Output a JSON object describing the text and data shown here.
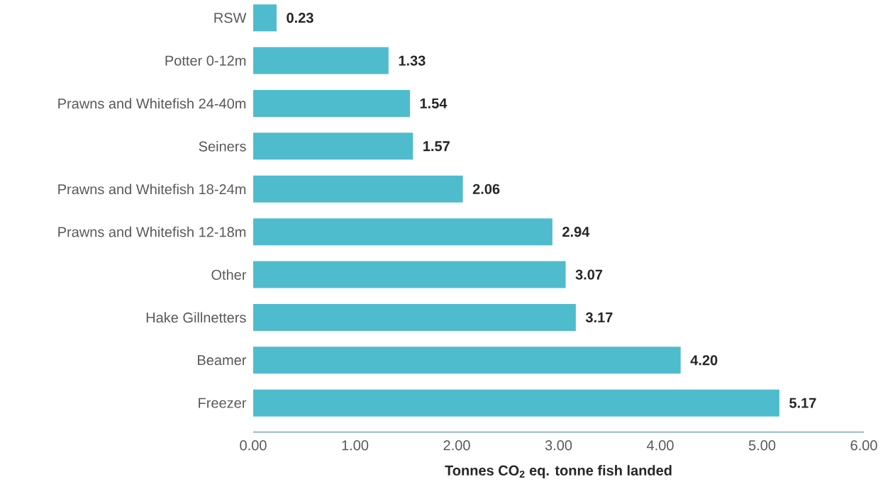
{
  "chart_data": {
    "type": "bar",
    "orientation": "horizontal",
    "categories": [
      "RSW",
      "Potter 0-12m",
      "Prawns and Whitefish 24-40m",
      "Seiners",
      "Prawns and Whitefish 18-24m",
      "Prawns and Whitefish 12-18m",
      "Other",
      "Hake Gillnetters",
      "Beamer",
      "Freezer"
    ],
    "values": [
      0.23,
      1.33,
      1.54,
      1.57,
      2.06,
      2.94,
      3.07,
      3.17,
      4.2,
      5.17
    ],
    "value_labels": [
      "0.23",
      "1.33",
      "1.54",
      "1.57",
      "2.06",
      "2.94",
      "3.07",
      "3.17",
      "4.20",
      "5.17"
    ],
    "color": "#4fbccd",
    "xlim": [
      0,
      6
    ],
    "xticks": [
      {
        "value": 0,
        "label": "0.00"
      },
      {
        "value": 1,
        "label": "1.00"
      },
      {
        "value": 2,
        "label": "2.00"
      },
      {
        "value": 3,
        "label": "3.00"
      },
      {
        "value": 4,
        "label": "4.00"
      },
      {
        "value": 5,
        "label": "5.00"
      },
      {
        "value": 6,
        "label": "6.00"
      }
    ],
    "xlabel": "Tonnes CO$_{2}$ eq. tonne fish landed"
  }
}
